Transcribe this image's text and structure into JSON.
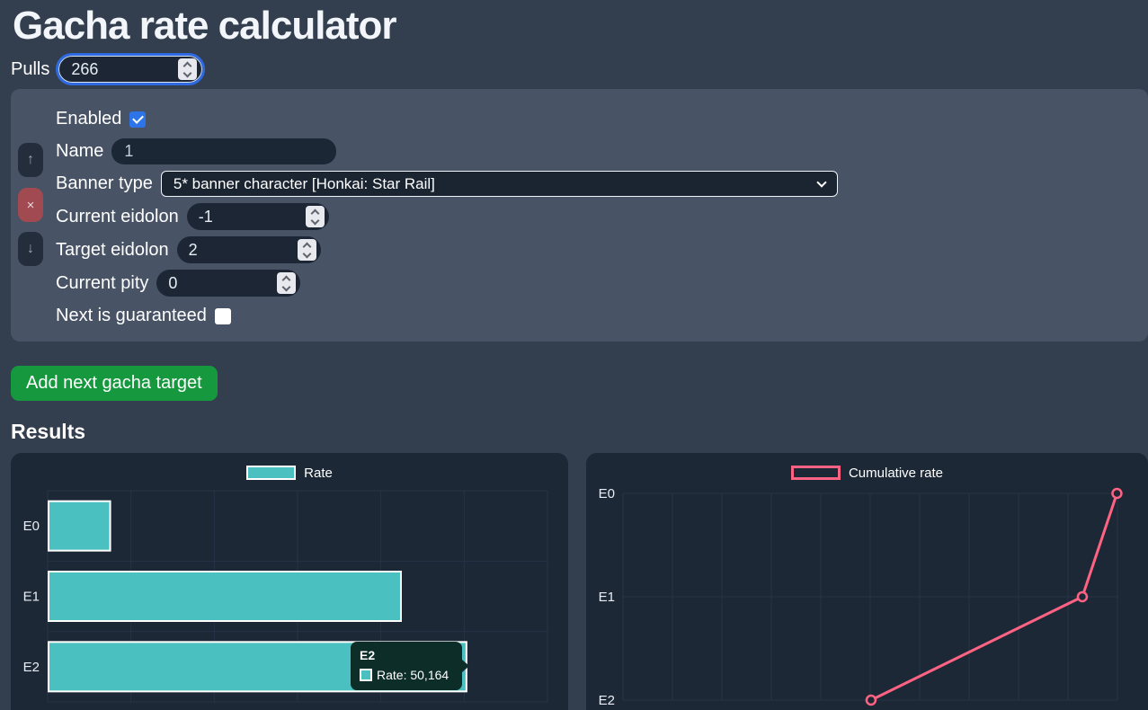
{
  "page": {
    "title": "Gacha rate calculator",
    "results_heading": "Results"
  },
  "pulls": {
    "label": "Pulls",
    "value": "266"
  },
  "target_form": {
    "enabled": {
      "label": "Enabled",
      "checked": true
    },
    "name": {
      "label": "Name",
      "value": "1"
    },
    "banner_type": {
      "label": "Banner type",
      "value": "5* banner character [Honkai: Star Rail]"
    },
    "current_eidolon": {
      "label": "Current eidolon",
      "value": "-1"
    },
    "target_eidolon": {
      "label": "Target eidolon",
      "value": "2"
    },
    "current_pity": {
      "label": "Current pity",
      "value": "0"
    },
    "next_guaranteed": {
      "label": "Next is guaranteed",
      "checked": false
    },
    "icons": {
      "move_up": "↑",
      "remove": "×",
      "move_down": "↓"
    }
  },
  "add_button_label": "Add next gacha target",
  "colors": {
    "page_bg": "#333e4f",
    "panel_bg": "#485365",
    "chart_bg": "#1d2836",
    "grid": "#273246",
    "tick_text": "#e9edf3",
    "bar_teal": "#4bc0c0",
    "line_pink": "#ff6384",
    "accent_blue": "#2d74e9",
    "button_green": "#16993e",
    "button_red": "#a14a51"
  },
  "chart_data": [
    {
      "type": "bar",
      "orientation": "horizontal",
      "legend": "Rate",
      "categories": [
        "E0",
        "E1",
        "E2"
      ],
      "values": [
        7.4,
        42.3,
        50.164
      ],
      "xlim": [
        0,
        60
      ],
      "x_ticks": [
        "0%",
        "10%",
        "20%",
        "30%",
        "40%",
        "50%",
        "60%"
      ],
      "bar_color": "#4bc0c0",
      "bar_border": "#ffffff",
      "grid": true,
      "legend_position": "top",
      "tooltip": {
        "title": "E2",
        "label": "Rate: 50,164"
      }
    },
    {
      "type": "line",
      "legend": "Cumulative rate",
      "categories": [
        "E0",
        "E1",
        "E2"
      ],
      "values": [
        99.9,
        92.9,
        50.164
      ],
      "xlim": [
        0,
        100
      ],
      "x_ticks": [
        "0%",
        "10%",
        "20%",
        "30%",
        "40%",
        "50%",
        "60%",
        "70%",
        "80%",
        "90%",
        "100%"
      ],
      "line_color": "#ff6384",
      "point_style": "open-circle",
      "grid": true,
      "legend_position": "top"
    }
  ]
}
